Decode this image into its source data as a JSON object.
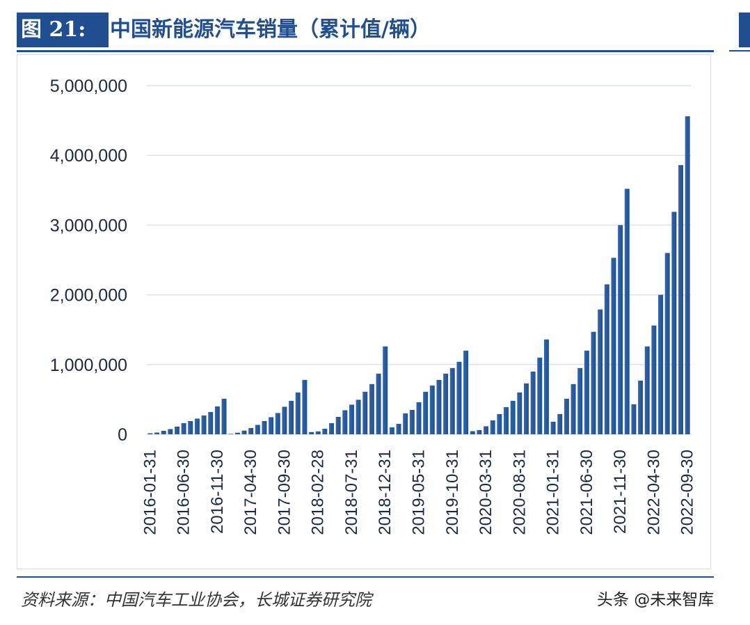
{
  "header": {
    "figure_label": "图 21:",
    "title": "中国新能源汽车销量（累计值/辆）"
  },
  "footer": {
    "source": "资料来源：中国汽车工业协会，长城证券研究院",
    "watermark": "头条 @未来智库"
  },
  "colors": {
    "accent": "#1f4f91",
    "bar_top": "#2f66b3",
    "bar_bottom": "#1f4f8e",
    "grid": "#d9e4f0"
  },
  "chart_data": {
    "type": "bar",
    "title": "",
    "xlabel": "",
    "ylabel": "",
    "ylim": [
      0,
      5000000
    ],
    "yticks": [
      "0",
      "1,000,000",
      "2,000,000",
      "3,000,000",
      "4,000,000",
      "5,000,000"
    ],
    "grid": true,
    "legend": "none",
    "xtick_labels": [
      "2016-01-31",
      "2016-06-30",
      "2016-11-30",
      "2017-04-30",
      "2017-09-30",
      "2018-02-28",
      "2018-07-31",
      "2018-12-31",
      "2019-05-31",
      "2019-10-31",
      "2020-03-31",
      "2020-08-31",
      "2021-01-31",
      "2021-06-30",
      "2021-11-30",
      "2022-04-30",
      "2022-09-30"
    ],
    "categories": [
      "2016-01-31",
      "2016-02-29",
      "2016-03-31",
      "2016-04-30",
      "2016-05-31",
      "2016-06-30",
      "2016-07-31",
      "2016-08-31",
      "2016-09-30",
      "2016-10-31",
      "2016-11-30",
      "2016-12-31",
      "2017-01-31",
      "2017-02-28",
      "2017-03-31",
      "2017-04-30",
      "2017-05-31",
      "2017-06-30",
      "2017-07-31",
      "2017-08-31",
      "2017-09-30",
      "2017-10-31",
      "2017-11-30",
      "2017-12-31",
      "2018-01-31",
      "2018-02-28",
      "2018-03-31",
      "2018-04-30",
      "2018-05-31",
      "2018-06-30",
      "2018-07-31",
      "2018-08-31",
      "2018-09-30",
      "2018-10-31",
      "2018-11-30",
      "2018-12-31",
      "2019-01-31",
      "2019-02-28",
      "2019-03-31",
      "2019-04-30",
      "2019-05-31",
      "2019-06-30",
      "2019-07-31",
      "2019-08-31",
      "2019-09-30",
      "2019-10-31",
      "2019-11-30",
      "2019-12-31",
      "2020-01-31",
      "2020-02-29",
      "2020-03-31",
      "2020-04-30",
      "2020-05-31",
      "2020-06-30",
      "2020-07-31",
      "2020-08-31",
      "2020-09-30",
      "2020-10-31",
      "2020-11-30",
      "2020-12-31",
      "2021-01-31",
      "2021-02-28",
      "2021-03-31",
      "2021-04-30",
      "2021-05-31",
      "2021-06-30",
      "2021-07-31",
      "2021-08-31",
      "2021-09-30",
      "2021-10-31",
      "2021-11-30",
      "2021-12-31",
      "2022-01-31",
      "2022-02-28",
      "2022-03-31",
      "2022-04-30",
      "2022-05-31",
      "2022-06-30",
      "2022-07-31",
      "2022-08-31",
      "2022-09-30"
    ],
    "values": [
      15000,
      25000,
      50000,
      75000,
      110000,
      160000,
      190000,
      225000,
      270000,
      320000,
      400000,
      510000,
      6000,
      23000,
      53000,
      90000,
      135000,
      190000,
      245000,
      305000,
      395000,
      480000,
      600000,
      780000,
      32000,
      42000,
      80000,
      160000,
      250000,
      345000,
      425000,
      495000,
      610000,
      720000,
      870000,
      1260000,
      100000,
      150000,
      300000,
      350000,
      460000,
      610000,
      700000,
      780000,
      870000,
      950000,
      1040000,
      1200000,
      45000,
      60000,
      115000,
      200000,
      290000,
      390000,
      480000,
      600000,
      730000,
      900000,
      1100000,
      1360000,
      180000,
      290000,
      510000,
      720000,
      950000,
      1200000,
      1470000,
      1790000,
      2150000,
      2530000,
      3000000,
      3520000,
      430000,
      770000,
      1260000,
      1560000,
      2000000,
      2600000,
      3190000,
      3860000,
      4560000
    ]
  }
}
